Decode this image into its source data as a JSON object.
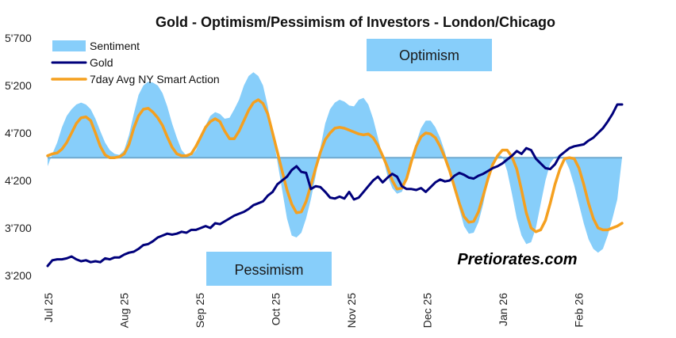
{
  "chart_data": {
    "type": "line",
    "title": "Gold - Optimism/Pessimism of Investors - London/Chicago",
    "xlabel": "",
    "ylabel": "",
    "ylim": [
      3200,
      5700
    ],
    "y_ticks": [
      "5'700",
      "5'200",
      "4'700",
      "4'200",
      "3'700",
      "3'200"
    ],
    "y_tick_values": [
      5700,
      5200,
      4700,
      4200,
      3700,
      3200
    ],
    "x_tick_labels": [
      "Jul 25",
      "Aug 25",
      "Sep 25",
      "Oct 25",
      "Nov 25",
      "Dec 25",
      "Jan 26",
      "Feb 26"
    ],
    "baseline": 4440,
    "legend": [
      "Sentiment",
      "Gold",
      "7day Avg NY Smart Action"
    ],
    "legend_position": "top-left",
    "colors": {
      "sentiment": "#87CEFA",
      "gold": "#00007B",
      "smart_action": "#F5A01F"
    },
    "annotations": {
      "optimism": "Optimism",
      "pessimism": "Pessimism",
      "watermark": "Pretiorates.com"
    },
    "series": [
      {
        "name": "Sentiment",
        "x": [
          0,
          2,
          4,
          6,
          8,
          10,
          12,
          14,
          16,
          18,
          20,
          22,
          24,
          26,
          28,
          30,
          32,
          34,
          36,
          38,
          40,
          42,
          44,
          46,
          48,
          50,
          52,
          54,
          56,
          58,
          60,
          62,
          64,
          66,
          68,
          70,
          72,
          74,
          76,
          78,
          80,
          82,
          84,
          86,
          88,
          90,
          92,
          94,
          96,
          98,
          100,
          102,
          104,
          106,
          108,
          110,
          112,
          114,
          116,
          118,
          120,
          122,
          124,
          126,
          128,
          130,
          132,
          134,
          136,
          138,
          140,
          142,
          144,
          146,
          148,
          150,
          152,
          154,
          156,
          158,
          160,
          162,
          164,
          166,
          168,
          170,
          172,
          174,
          176,
          178,
          180,
          182,
          184,
          186,
          188,
          190,
          192,
          194,
          196,
          198,
          200,
          202,
          204,
          206,
          208,
          210,
          212,
          214,
          216,
          218,
          220,
          222,
          224,
          226,
          228,
          230,
          232,
          234,
          236,
          238,
          240
        ],
        "values": [
          4350,
          4480,
          4600,
          4760,
          4880,
          4950,
          5000,
          5020,
          5000,
          4950,
          4850,
          4720,
          4600,
          4520,
          4480,
          4470,
          4520,
          4680,
          4900,
          5100,
          5200,
          5240,
          5230,
          5200,
          5120,
          4980,
          4800,
          4650,
          4520,
          4460,
          4460,
          4520,
          4640,
          4780,
          4880,
          4920,
          4900,
          4850,
          4860,
          4950,
          5050,
          5200,
          5300,
          5340,
          5300,
          5200,
          4980,
          4700,
          4400,
          4100,
          3800,
          3620,
          3600,
          3650,
          3800,
          4000,
          4250,
          4550,
          4800,
          4950,
          5020,
          5050,
          5030,
          4990,
          4980,
          5050,
          5070,
          5000,
          4850,
          4650,
          4450,
          4250,
          4120,
          4060,
          4080,
          4200,
          4400,
          4600,
          4750,
          4830,
          4830,
          4760,
          4650,
          4500,
          4300,
          4100,
          3900,
          3720,
          3640,
          3650,
          3760,
          3950,
          4200,
          4400,
          4480,
          4450,
          4300,
          4060,
          3800,
          3620,
          3530,
          3550,
          3700,
          3950,
          4200,
          4380,
          4450,
          4460,
          4430,
          4320,
          4150,
          3950,
          3750,
          3580,
          3480,
          3440,
          3480,
          3620,
          3800,
          4000,
          4440
        ]
      },
      {
        "name": "Gold",
        "x": [
          0,
          2,
          4,
          6,
          8,
          10,
          12,
          14,
          16,
          18,
          20,
          22,
          24,
          26,
          28,
          30,
          32,
          34,
          36,
          38,
          40,
          42,
          44,
          46,
          48,
          50,
          52,
          54,
          56,
          58,
          60,
          62,
          64,
          66,
          68,
          70,
          72,
          74,
          76,
          78,
          80,
          82,
          84,
          86,
          88,
          90,
          92,
          94,
          96,
          98,
          100,
          102,
          104,
          106,
          108,
          110,
          112,
          114,
          116,
          118,
          120,
          122,
          124,
          126,
          128,
          130,
          132,
          134,
          136,
          138,
          140,
          142,
          144,
          146,
          148,
          150,
          152,
          154,
          156,
          158,
          160,
          162,
          164,
          166,
          168,
          170,
          172,
          174,
          176,
          178,
          180,
          182,
          184,
          186,
          188,
          190,
          192,
          194,
          196,
          198,
          200,
          202,
          204,
          206,
          208,
          210,
          212,
          214,
          216,
          218,
          220,
          222,
          224,
          226,
          228,
          230,
          232,
          234,
          236,
          238,
          240
        ],
        "values": [
          3300,
          3360,
          3370,
          3370,
          3380,
          3400,
          3370,
          3350,
          3360,
          3340,
          3350,
          3340,
          3380,
          3370,
          3390,
          3390,
          3420,
          3440,
          3450,
          3480,
          3520,
          3530,
          3560,
          3600,
          3620,
          3640,
          3630,
          3640,
          3660,
          3650,
          3680,
          3680,
          3700,
          3720,
          3700,
          3750,
          3740,
          3770,
          3800,
          3830,
          3850,
          3870,
          3900,
          3940,
          3960,
          3980,
          4040,
          4080,
          4160,
          4200,
          4240,
          4310,
          4350,
          4290,
          4280,
          4110,
          4140,
          4130,
          4080,
          4020,
          4010,
          4030,
          4010,
          4080,
          4000,
          4020,
          4080,
          4140,
          4200,
          4240,
          4180,
          4230,
          4270,
          4240,
          4140,
          4110,
          4110,
          4100,
          4120,
          4080,
          4130,
          4180,
          4210,
          4190,
          4200,
          4250,
          4280,
          4260,
          4230,
          4220,
          4250,
          4270,
          4300,
          4330,
          4350,
          4380,
          4420,
          4460,
          4510,
          4480,
          4540,
          4520,
          4430,
          4380,
          4330,
          4320,
          4370,
          4460,
          4500,
          4540,
          4560,
          4570,
          4580,
          4620,
          4650,
          4700,
          4750,
          4820,
          4900,
          5000,
          5000
        ]
      },
      {
        "name": "7day Avg NY Smart Action",
        "x": [
          0,
          2,
          4,
          6,
          8,
          10,
          12,
          14,
          16,
          18,
          20,
          22,
          24,
          26,
          28,
          30,
          32,
          34,
          36,
          38,
          40,
          42,
          44,
          46,
          48,
          50,
          52,
          54,
          56,
          58,
          60,
          62,
          64,
          66,
          68,
          70,
          72,
          74,
          76,
          78,
          80,
          82,
          84,
          86,
          88,
          90,
          92,
          94,
          96,
          98,
          100,
          102,
          104,
          106,
          108,
          110,
          112,
          114,
          116,
          118,
          120,
          122,
          124,
          126,
          128,
          130,
          132,
          134,
          136,
          138,
          140,
          142,
          144,
          146,
          148,
          150,
          152,
          154,
          156,
          158,
          160,
          162,
          164,
          166,
          168,
          170,
          172,
          174,
          176,
          178,
          180,
          182,
          184,
          186,
          188,
          190,
          192,
          194,
          196,
          198,
          200,
          202,
          204,
          206,
          208,
          210,
          212,
          214,
          216,
          218,
          220,
          222,
          224,
          226,
          228,
          230,
          232,
          234,
          236,
          238,
          240
        ],
        "values": [
          4460,
          4480,
          4490,
          4530,
          4600,
          4700,
          4800,
          4860,
          4870,
          4830,
          4700,
          4560,
          4470,
          4440,
          4440,
          4450,
          4480,
          4580,
          4750,
          4880,
          4950,
          4960,
          4920,
          4860,
          4780,
          4660,
          4550,
          4480,
          4460,
          4460,
          4480,
          4560,
          4660,
          4760,
          4820,
          4850,
          4820,
          4720,
          4640,
          4640,
          4720,
          4830,
          4940,
          5020,
          5050,
          5010,
          4900,
          4700,
          4500,
          4300,
          4100,
          3950,
          3860,
          3870,
          3980,
          4150,
          4330,
          4500,
          4630,
          4700,
          4750,
          4760,
          4750,
          4730,
          4710,
          4690,
          4680,
          4690,
          4650,
          4570,
          4460,
          4340,
          4200,
          4110,
          4120,
          4220,
          4400,
          4560,
          4660,
          4700,
          4690,
          4650,
          4560,
          4440,
          4300,
          4130,
          3960,
          3820,
          3760,
          3770,
          3870,
          4040,
          4220,
          4370,
          4460,
          4520,
          4520,
          4450,
          4320,
          4100,
          3860,
          3700,
          3660,
          3680,
          3780,
          3960,
          4160,
          4320,
          4430,
          4440,
          4430,
          4330,
          4160,
          3960,
          3800,
          3700,
          3680,
          3680,
          3700,
          3720,
          3750
        ]
      }
    ]
  }
}
